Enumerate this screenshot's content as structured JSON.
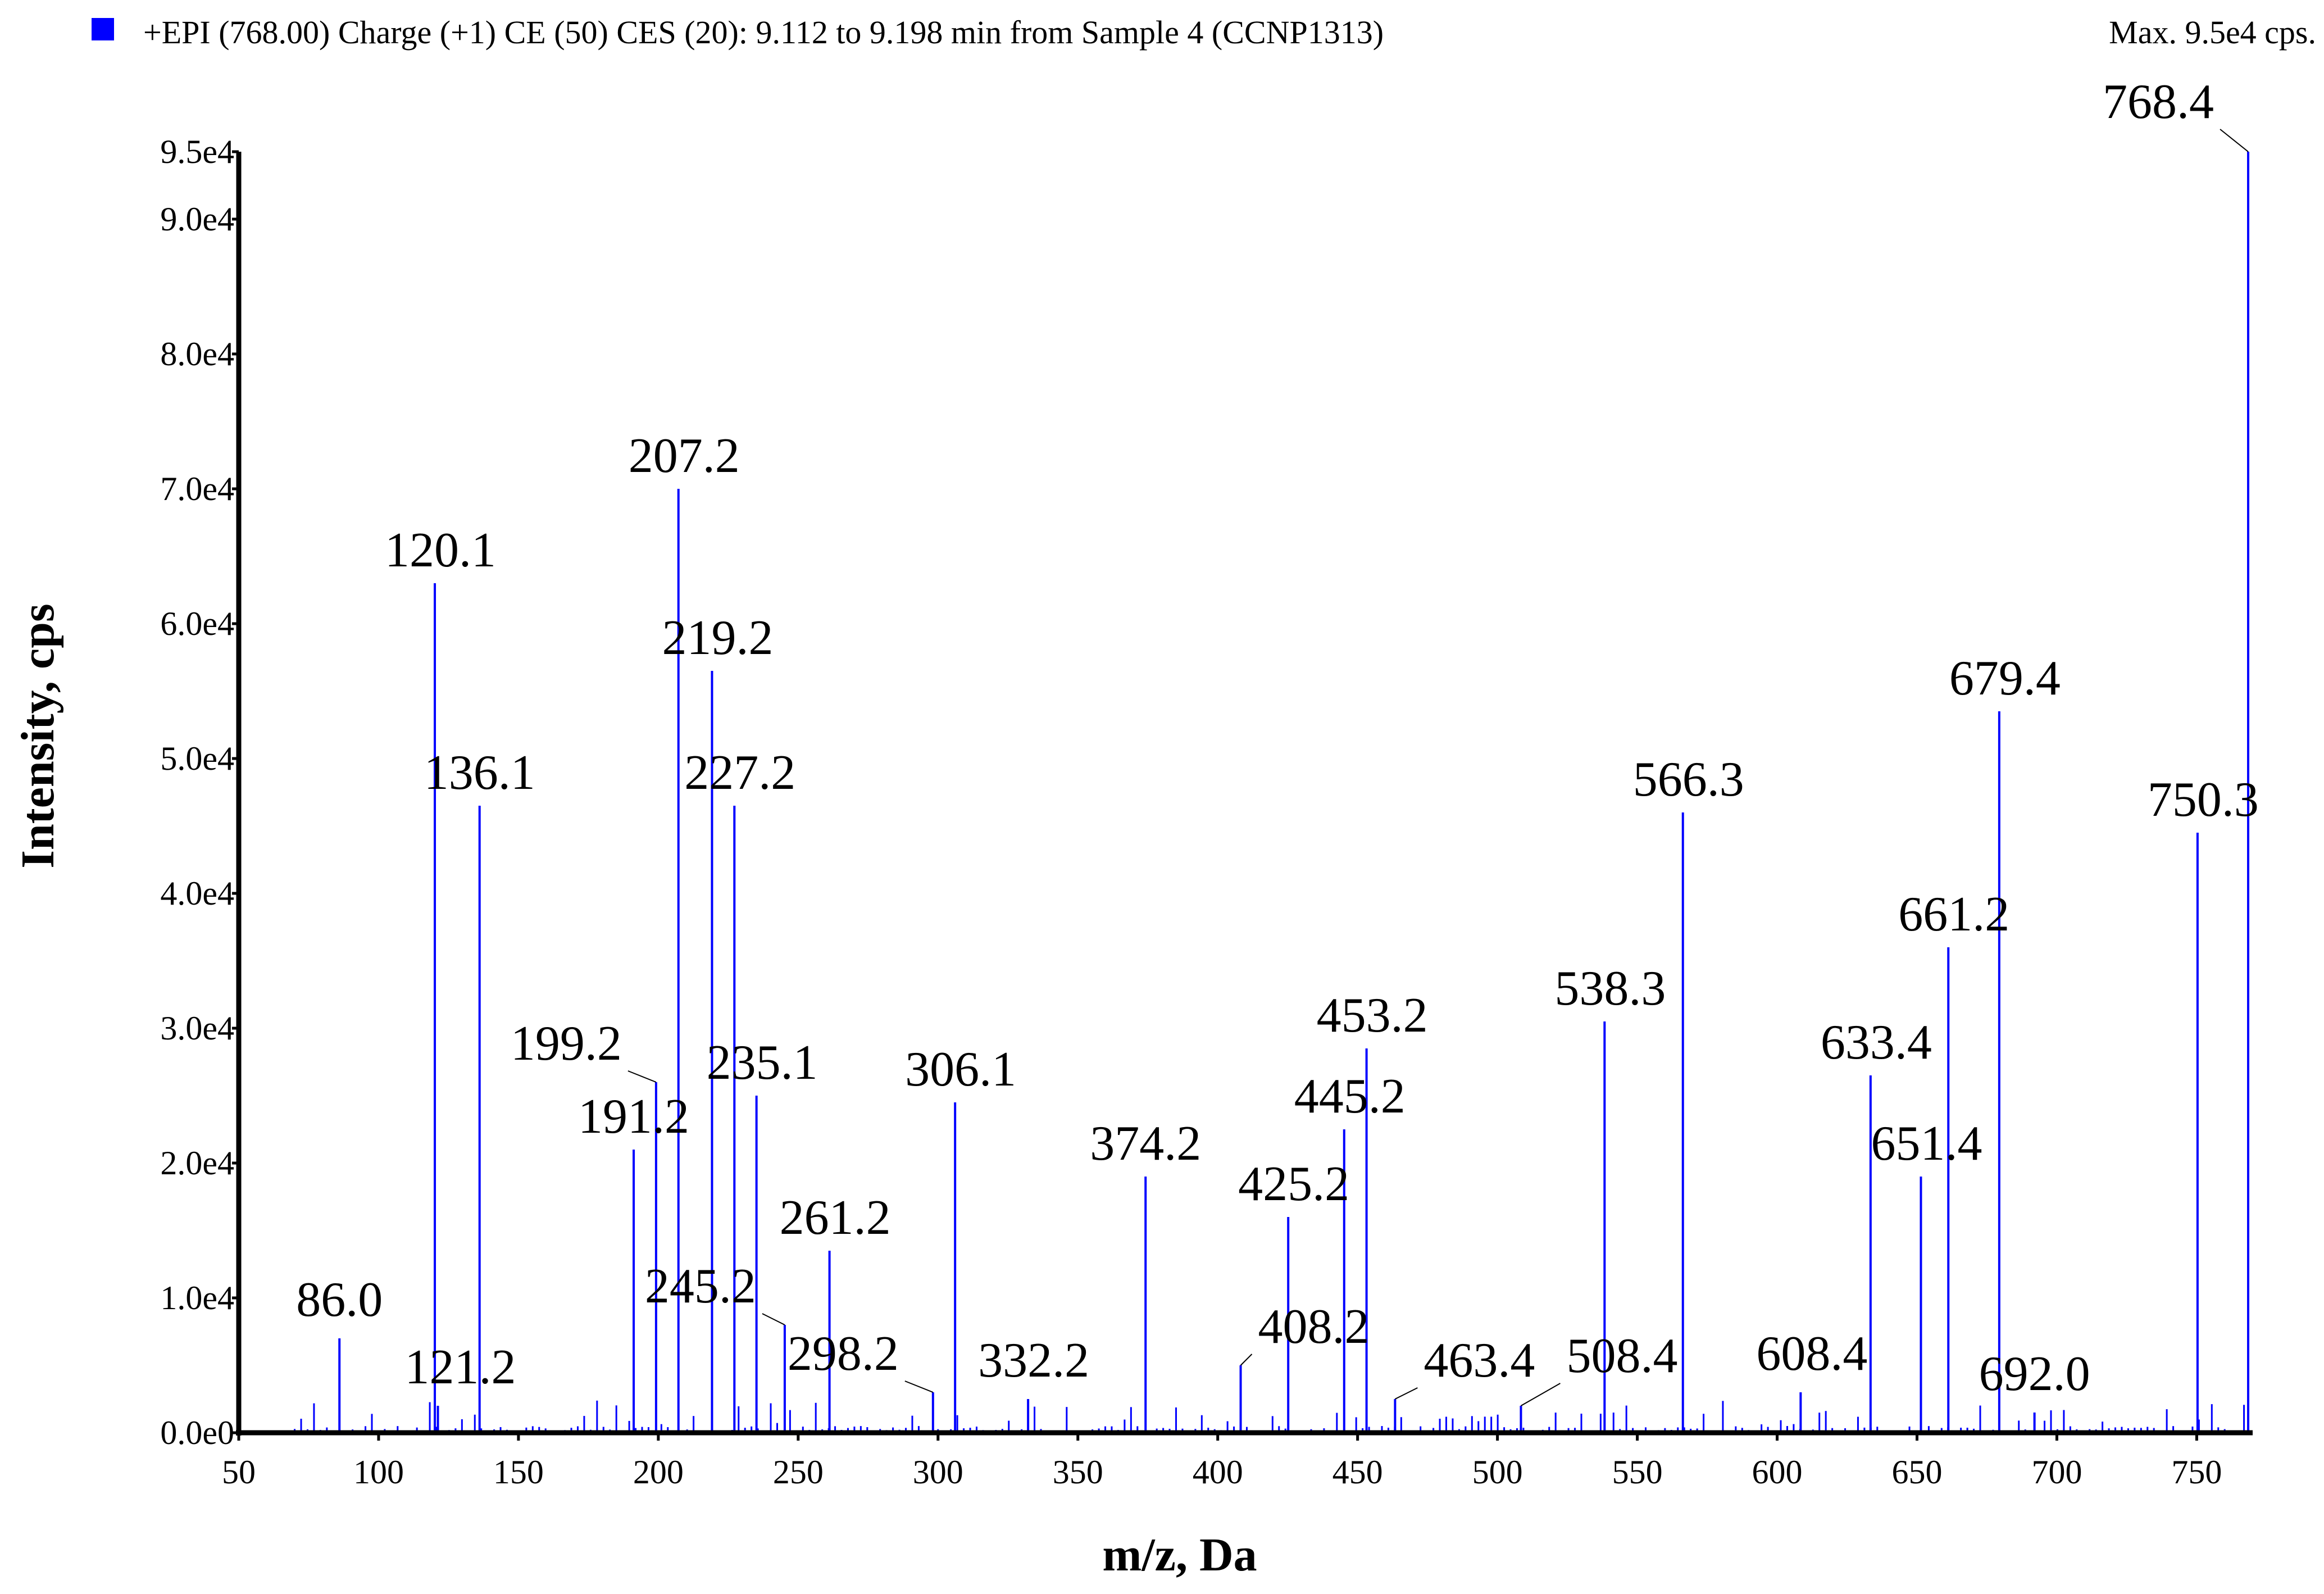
{
  "legend": {
    "label": "+EPI (768.00) Charge (+1) CE (50) CES (20): 9.112 to 9.198 min from Sample 4 (CCNP1313)",
    "color": "#0000ff"
  },
  "max_label": "Max. 9.5e4 cps.",
  "chart_data": {
    "type": "bar",
    "title": "+EPI (768.00) Charge (+1) CE (50) CES (20): 9.112 to 9.198 min from Sample 4 (CCNP1313)",
    "xlabel": "m/z, Da",
    "ylabel": "Intensity, cps",
    "xlim": [
      50,
      770
    ],
    "ylim": [
      0,
      95000
    ],
    "x_ticks": [
      50,
      100,
      150,
      200,
      250,
      300,
      350,
      400,
      450,
      500,
      550,
      600,
      650,
      700,
      750
    ],
    "y_ticks": [
      {
        "value": 0,
        "label": "0.0e0"
      },
      {
        "value": 10000,
        "label": "1.0e4"
      },
      {
        "value": 20000,
        "label": "2.0e4"
      },
      {
        "value": 30000,
        "label": "3.0e4"
      },
      {
        "value": 40000,
        "label": "4.0e4"
      },
      {
        "value": 50000,
        "label": "5.0e4"
      },
      {
        "value": 60000,
        "label": "6.0e4"
      },
      {
        "value": 70000,
        "label": "7.0e4"
      },
      {
        "value": 80000,
        "label": "8.0e4"
      },
      {
        "value": 90000,
        "label": "9.0e4"
      },
      {
        "value": 95000,
        "label": "9.5e4"
      }
    ],
    "series_color": "#0000ff",
    "peaks": [
      {
        "mz": 86.0,
        "intensity": 7000,
        "label": "86.0"
      },
      {
        "mz": 120.1,
        "intensity": 63000,
        "label": "120.1"
      },
      {
        "mz": 121.2,
        "intensity": 2000,
        "label": "121.2"
      },
      {
        "mz": 136.1,
        "intensity": 46500,
        "label": "136.1"
      },
      {
        "mz": 191.2,
        "intensity": 21000,
        "label": "191.2"
      },
      {
        "mz": 199.2,
        "intensity": 26000,
        "label": "199.2"
      },
      {
        "mz": 207.2,
        "intensity": 70000,
        "label": "207.2"
      },
      {
        "mz": 219.2,
        "intensity": 56500,
        "label": "219.2"
      },
      {
        "mz": 227.2,
        "intensity": 46500,
        "label": "227.2"
      },
      {
        "mz": 235.1,
        "intensity": 25000,
        "label": "235.1"
      },
      {
        "mz": 245.2,
        "intensity": 8000,
        "label": "245.2"
      },
      {
        "mz": 261.2,
        "intensity": 13500,
        "label": "261.2"
      },
      {
        "mz": 298.2,
        "intensity": 3000,
        "label": "298.2"
      },
      {
        "mz": 306.1,
        "intensity": 24500,
        "label": "306.1"
      },
      {
        "mz": 332.2,
        "intensity": 2500,
        "label": "332.2"
      },
      {
        "mz": 374.2,
        "intensity": 19000,
        "label": "374.2"
      },
      {
        "mz": 408.2,
        "intensity": 5000,
        "label": "408.2"
      },
      {
        "mz": 425.2,
        "intensity": 16000,
        "label": "425.2"
      },
      {
        "mz": 445.2,
        "intensity": 22500,
        "label": "445.2"
      },
      {
        "mz": 453.2,
        "intensity": 28500,
        "label": "453.2"
      },
      {
        "mz": 463.4,
        "intensity": 2500,
        "label": "463.4"
      },
      {
        "mz": 508.4,
        "intensity": 2000,
        "label": "508.4"
      },
      {
        "mz": 538.3,
        "intensity": 30500,
        "label": "538.3"
      },
      {
        "mz": 566.3,
        "intensity": 46000,
        "label": "566.3"
      },
      {
        "mz": 608.4,
        "intensity": 3000,
        "label": "608.4"
      },
      {
        "mz": 633.4,
        "intensity": 26500,
        "label": "633.4"
      },
      {
        "mz": 651.4,
        "intensity": 19000,
        "label": "651.4"
      },
      {
        "mz": 661.2,
        "intensity": 36000,
        "label": "661.2"
      },
      {
        "mz": 679.4,
        "intensity": 53500,
        "label": "679.4"
      },
      {
        "mz": 692.0,
        "intensity": 1500,
        "label": "692.0"
      },
      {
        "mz": 750.3,
        "intensity": 44500,
        "label": "750.3"
      },
      {
        "mz": 768.4,
        "intensity": 95000,
        "label": "768.4"
      }
    ]
  }
}
